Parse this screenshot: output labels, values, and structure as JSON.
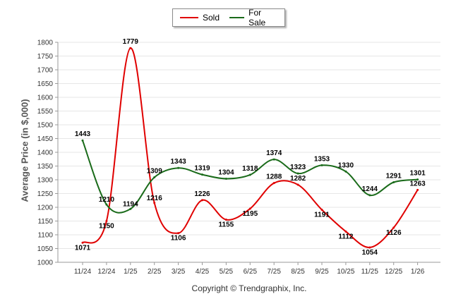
{
  "chart_data": {
    "type": "line",
    "title": "",
    "ylabel": "Average Price (in $,000)",
    "xlabel": "",
    "credit": "Copyright © Trendgraphix, Inc.",
    "categories": [
      "11/24",
      "12/24",
      "1/25",
      "2/25",
      "3/25",
      "4/25",
      "5/25",
      "6/25",
      "7/25",
      "8/25",
      "9/25",
      "10/25",
      "11/25",
      "12/25",
      "1/26"
    ],
    "ylim": [
      1000,
      1800
    ],
    "yticks": [
      1000,
      1050,
      1100,
      1150,
      1200,
      1250,
      1300,
      1350,
      1400,
      1450,
      1500,
      1550,
      1600,
      1650,
      1700,
      1750,
      1800
    ],
    "legend_position": "top-center",
    "series": [
      {
        "name": "Sold",
        "color": "#e00000",
        "values": [
          1071,
          1150,
          1779,
          1216,
          1106,
          1226,
          1155,
          1195,
          1288,
          1282,
          1191,
          1112,
          1054,
          1126,
          1263
        ]
      },
      {
        "name": "For Sale",
        "color": "#1a6b1a",
        "values": [
          1443,
          1210,
          1194,
          1309,
          1343,
          1319,
          1304,
          1318,
          1374,
          1323,
          1353,
          1330,
          1244,
          1291,
          1301
        ]
      }
    ]
  }
}
